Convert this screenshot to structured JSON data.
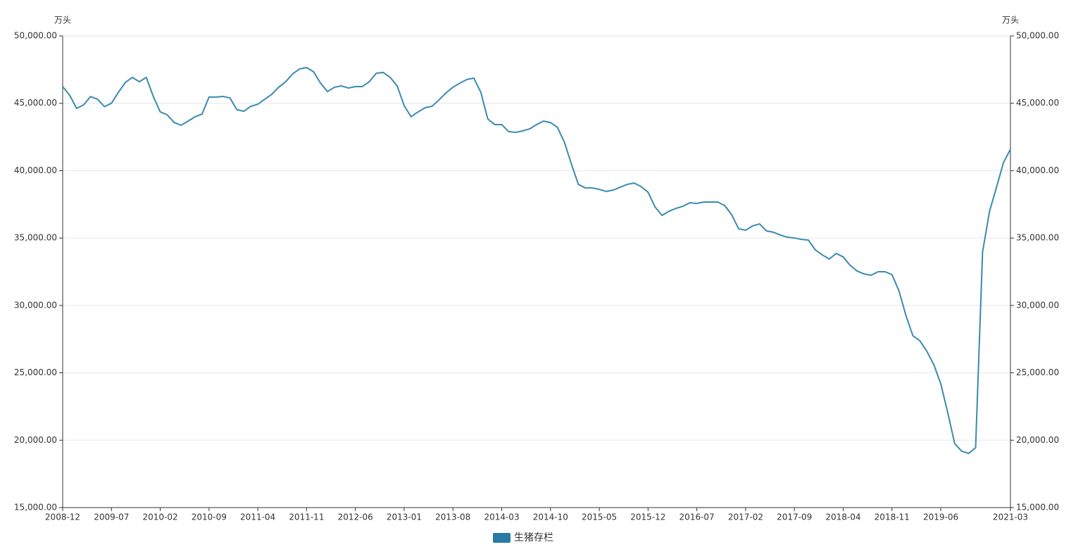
{
  "chart_data": {
    "type": "line",
    "y_unit": "万头",
    "y2_unit": "万头",
    "categories": [
      "2008-12",
      null,
      null,
      null,
      null,
      null,
      null,
      "2009-07",
      null,
      null,
      null,
      null,
      null,
      null,
      "2010-02",
      null,
      null,
      null,
      null,
      null,
      null,
      "2010-09",
      null,
      null,
      null,
      null,
      null,
      null,
      "2011-04",
      null,
      null,
      null,
      null,
      null,
      null,
      "2011-11",
      null,
      null,
      null,
      null,
      null,
      null,
      "2012-06",
      null,
      null,
      null,
      null,
      null,
      null,
      "2013-01",
      null,
      null,
      null,
      null,
      null,
      null,
      "2013-08",
      null,
      null,
      null,
      null,
      null,
      null,
      "2014-03",
      null,
      null,
      null,
      null,
      null,
      null,
      "2014-10",
      null,
      null,
      null,
      null,
      null,
      null,
      "2015-05",
      null,
      null,
      null,
      null,
      null,
      null,
      "2015-12",
      null,
      null,
      null,
      null,
      null,
      null,
      "2016-07",
      null,
      null,
      null,
      null,
      null,
      null,
      "2017-02",
      null,
      null,
      null,
      null,
      null,
      null,
      "2017-09",
      null,
      null,
      null,
      null,
      null,
      null,
      "2018-04",
      null,
      null,
      null,
      null,
      null,
      null,
      "2018-11",
      null,
      null,
      null,
      null,
      null,
      null,
      "2019-06",
      null,
      null,
      null,
      null,
      null,
      null,
      null,
      null,
      null,
      "2021-03"
    ],
    "series": [
      {
        "name": "生猪存栏",
        "color": "#3a8ab0",
        "legend_color": "#2a7aa6",
        "values": [
          46240,
          45600,
          44620,
          44880,
          45500,
          45300,
          44750,
          45000,
          45820,
          46550,
          46920,
          46600,
          46920,
          45510,
          44360,
          44150,
          43570,
          43370,
          43680,
          44000,
          44200,
          45460,
          45460,
          45510,
          45400,
          44520,
          44410,
          44780,
          44930,
          45300,
          45660,
          46190,
          46600,
          47180,
          47550,
          47650,
          47340,
          46500,
          45870,
          46190,
          46290,
          46130,
          46240,
          46240,
          46600,
          47230,
          47290,
          46920,
          46290,
          44830,
          44000,
          44360,
          44670,
          44780,
          45250,
          45770,
          46190,
          46500,
          46760,
          46870,
          45820,
          43840,
          43420,
          43420,
          42900,
          42840,
          42950,
          43100,
          43420,
          43680,
          43570,
          43210,
          42110,
          40490,
          38980,
          38720,
          38720,
          38610,
          38460,
          38560,
          38770,
          38980,
          39080,
          38820,
          38400,
          37310,
          36680,
          36990,
          37200,
          37360,
          37620,
          37570,
          37670,
          37670,
          37670,
          37410,
          36730,
          35690,
          35580,
          35900,
          36050,
          35530,
          35430,
          35220,
          35060,
          35010,
          34900,
          34850,
          34120,
          33750,
          33440,
          33860,
          33600,
          32970,
          32550,
          32340,
          32240,
          32500,
          32500,
          32290,
          31090,
          29260,
          27750,
          27380,
          26600,
          25610,
          24190,
          22050,
          19750,
          19180,
          19020,
          19440,
          33960,
          36990,
          38770,
          40600,
          41590
        ]
      }
    ],
    "ylim": [
      15000,
      50000
    ],
    "yticks": [
      {
        "value": 15000,
        "label": "15,000.00"
      },
      {
        "value": 20000,
        "label": "20,000.00"
      },
      {
        "value": 25000,
        "label": "25,000.00"
      },
      {
        "value": 30000,
        "label": "30,000.00"
      },
      {
        "value": 35000,
        "label": "35,000.00"
      },
      {
        "value": 40000,
        "label": "40,000.00"
      },
      {
        "value": 45000,
        "label": "45,000.00"
      },
      {
        "value": 50000,
        "label": "50,000.00"
      }
    ],
    "y2lim": [
      15000,
      50000
    ],
    "y2ticks": [
      {
        "value": 15000,
        "label": "15,000.00"
      },
      {
        "value": 20000,
        "label": "20,000.00"
      },
      {
        "value": 25000,
        "label": "25,000.00"
      },
      {
        "value": 30000,
        "label": "30,000.00"
      },
      {
        "value": 35000,
        "label": "35,000.00"
      },
      {
        "value": 40000,
        "label": "40,000.00"
      },
      {
        "value": 45000,
        "label": "45,000.00"
      },
      {
        "value": 50000,
        "label": "50,000.00"
      }
    ],
    "grid": true,
    "legend": "bottom"
  }
}
